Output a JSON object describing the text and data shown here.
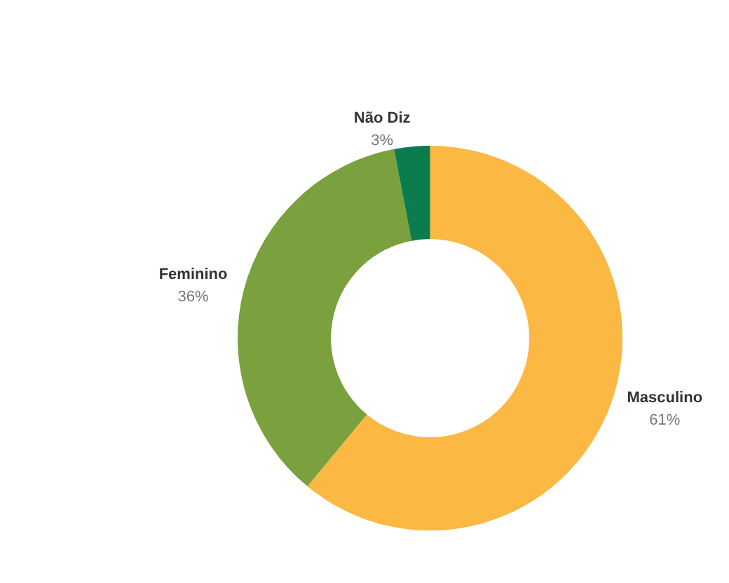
{
  "chart_data": {
    "type": "donut",
    "categories": [
      "Masculino",
      "Feminino",
      "Não Diz"
    ],
    "values": [
      61,
      36,
      3
    ],
    "colors": [
      "#fbb843",
      "#7aa13d",
      "#0b7c4e"
    ],
    "value_labels": [
      "61%",
      "36%",
      "3%"
    ],
    "legend": false
  }
}
